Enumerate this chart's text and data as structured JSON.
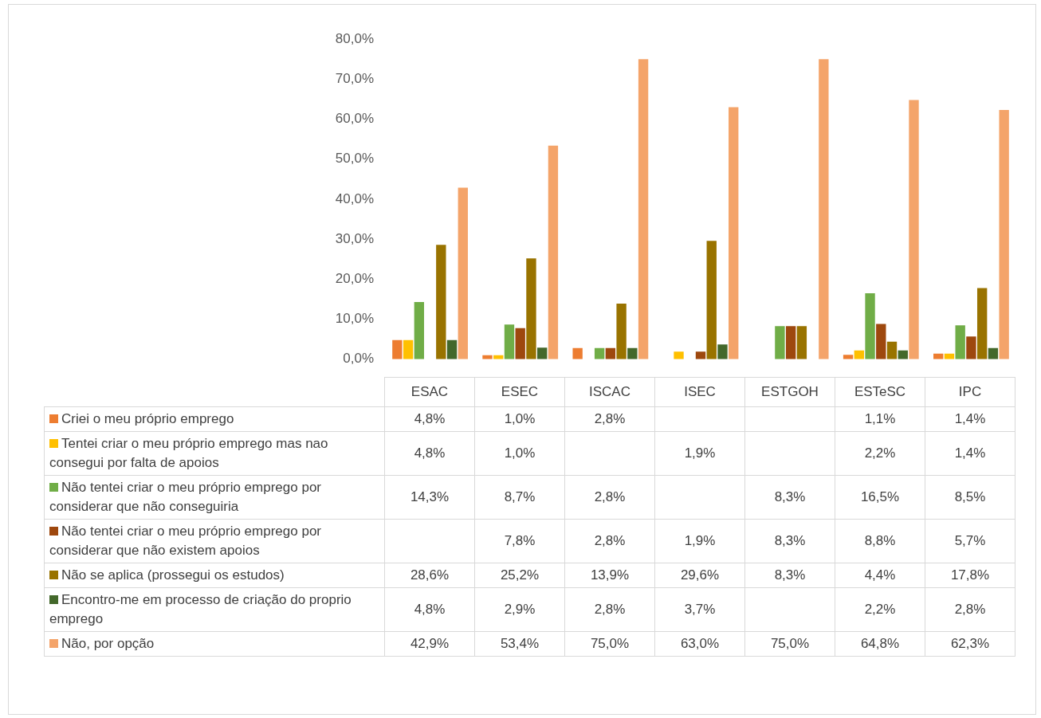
{
  "chart_data": {
    "type": "bar",
    "categories": [
      "ESAC",
      "ESEC",
      "ISCAC",
      "ISEC",
      "ESTGOH",
      "ESTeSC",
      "IPC"
    ],
    "series": [
      {
        "name": "Criei o meu próprio emprego",
        "color": "#ed7d31",
        "values": [
          4.8,
          1.0,
          2.8,
          null,
          null,
          1.1,
          1.4
        ],
        "value_labels": [
          "4,8%",
          "1,0%",
          "2,8%",
          null,
          null,
          "1,1%",
          "1,4%"
        ]
      },
      {
        "name": "Tentei criar o meu próprio emprego mas nao consegui por falta de apoios",
        "color": "#ffc000",
        "values": [
          4.8,
          1.0,
          null,
          1.9,
          null,
          2.2,
          1.4
        ],
        "value_labels": [
          "4,8%",
          "1,0%",
          null,
          "1,9%",
          null,
          "2,2%",
          "1,4%"
        ]
      },
      {
        "name": "Não tentei criar o meu próprio emprego por considerar que não conseguiria",
        "color": "#70ad47",
        "values": [
          14.3,
          8.7,
          2.8,
          null,
          8.3,
          16.5,
          8.5
        ],
        "value_labels": [
          "14,3%",
          "8,7%",
          "2,8%",
          null,
          "8,3%",
          "16,5%",
          "8,5%"
        ]
      },
      {
        "name": "Não tentei criar o meu próprio emprego por considerar que não existem apoios",
        "color": "#9e480e",
        "values": [
          null,
          7.8,
          2.8,
          1.9,
          8.3,
          8.8,
          5.7
        ],
        "value_labels": [
          null,
          "7,8%",
          "2,8%",
          "1,9%",
          "8,3%",
          "8,8%",
          "5,7%"
        ]
      },
      {
        "name": "Não se aplica (prossegui os estudos)",
        "color": "#997300",
        "values": [
          28.6,
          25.2,
          13.9,
          29.6,
          8.3,
          4.4,
          17.8
        ],
        "value_labels": [
          "28,6%",
          "25,2%",
          "13,9%",
          "29,6%",
          "8,3%",
          "4,4%",
          "17,8%"
        ]
      },
      {
        "name": "Encontro-me em processo de criação do proprio emprego",
        "color": "#43682b",
        "values": [
          4.8,
          2.9,
          2.8,
          3.7,
          null,
          2.2,
          2.8
        ],
        "value_labels": [
          "4,8%",
          "2,9%",
          "2,8%",
          "3,7%",
          null,
          "2,2%",
          "2,8%"
        ]
      },
      {
        "name": "Não, por opção",
        "color": "#f4a46a",
        "values": [
          42.9,
          53.4,
          75.0,
          63.0,
          75.0,
          64.8,
          62.3
        ],
        "value_labels": [
          "42,9%",
          "53,4%",
          "75,0%",
          "63,0%",
          "75,0%",
          "64,8%",
          "62,3%"
        ]
      }
    ],
    "ylim": [
      0,
      80
    ],
    "yticks": [
      {
        "value": 0,
        "label": "0,0%"
      },
      {
        "value": 10,
        "label": "10,0%"
      },
      {
        "value": 20,
        "label": "20,0%"
      },
      {
        "value": 30,
        "label": "30,0%"
      },
      {
        "value": 40,
        "label": "40,0%"
      },
      {
        "value": 50,
        "label": "50,0%"
      },
      {
        "value": 60,
        "label": "60,0%"
      },
      {
        "value": 70,
        "label": "70,0%"
      },
      {
        "value": 80,
        "label": "80,0%"
      }
    ],
    "grid": false,
    "legend": "bottom"
  }
}
